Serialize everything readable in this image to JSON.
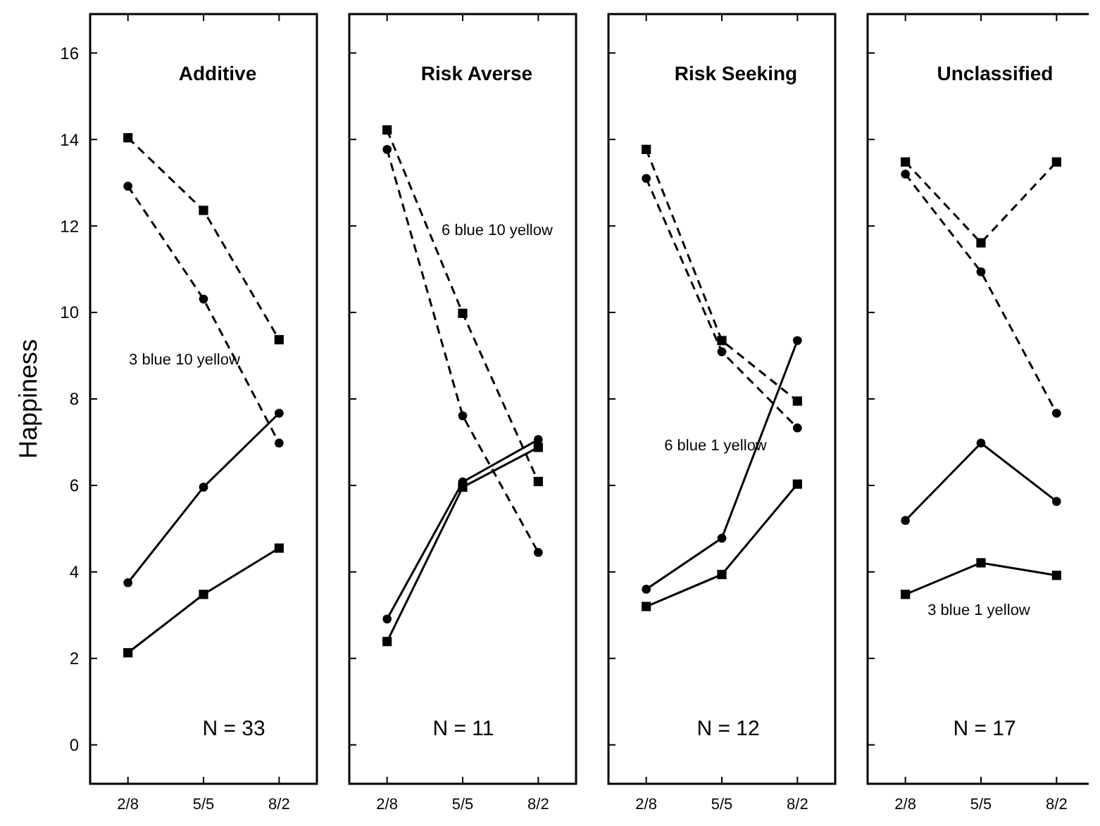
{
  "chart_data": [
    {
      "type": "line",
      "title": "Additive",
      "ylabel": "Happiness",
      "categories": [
        "2/8",
        "5/5",
        "8/2"
      ],
      "ylim": [
        -0.9,
        16.9
      ],
      "yticks": [
        0,
        2,
        4,
        6,
        8,
        10,
        12,
        14,
        16
      ],
      "series": [
        {
          "color": "#000000",
          "marker": "square",
          "line_style": "dashed",
          "values": [
            14.04,
            12.36,
            9.37
          ]
        },
        {
          "color": "#000000",
          "marker": "circle",
          "line_style": "dashed",
          "values": [
            12.92,
            10.31,
            6.98
          ]
        },
        {
          "color": "#000000",
          "marker": "circle",
          "line_style": "solid",
          "values": [
            3.75,
            5.96,
            7.67
          ]
        },
        {
          "color": "#000000",
          "marker": "square",
          "line_style": "solid",
          "values": [
            2.13,
            3.48,
            4.55
          ]
        }
      ],
      "annotations": [
        "3 blue 10 yellow",
        "N = 33"
      ]
    },
    {
      "type": "line",
      "title": "Risk Averse",
      "categories": [
        "2/8",
        "5/5",
        "8/2"
      ],
      "ylim": [
        -0.9,
        16.9
      ],
      "yticks": [
        0,
        2,
        4,
        6,
        8,
        10,
        12,
        14,
        16
      ],
      "tick_labels": "x",
      "series": [
        {
          "color": "#000000",
          "marker": "square",
          "line_style": "dashed",
          "values": [
            14.22,
            9.98,
            6.09
          ]
        },
        {
          "color": "#000000",
          "marker": "circle",
          "line_style": "dashed",
          "values": [
            13.77,
            7.61,
            4.45
          ]
        },
        {
          "color": "#000000",
          "marker": "circle",
          "line_style": "solid",
          "values": [
            2.91,
            6.08,
            7.06
          ]
        },
        {
          "color": "#000000",
          "marker": "square",
          "line_style": "solid",
          "values": [
            2.39,
            5.96,
            6.88
          ]
        }
      ],
      "annotations": [
        "6 blue 10 yellow",
        "N = 11"
      ]
    },
    {
      "type": "line",
      "title": "Risk Seeking",
      "categories": [
        "2/8",
        "5/5",
        "8/2"
      ],
      "ylim": [
        -0.9,
        16.9
      ],
      "yticks": [
        0,
        2,
        4,
        6,
        8,
        10,
        12,
        14,
        16
      ],
      "tick_labels": "x",
      "series": [
        {
          "color": "#000000",
          "marker": "square",
          "line_style": "dashed",
          "values": [
            13.77,
            9.35,
            7.95
          ]
        },
        {
          "color": "#000000",
          "marker": "circle",
          "line_style": "dashed",
          "values": [
            13.1,
            9.09,
            7.33
          ]
        },
        {
          "color": "#000000",
          "marker": "circle",
          "line_style": "solid",
          "values": [
            3.6,
            4.78,
            9.35
          ]
        },
        {
          "color": "#000000",
          "marker": "square",
          "line_style": "solid",
          "values": [
            3.2,
            3.94,
            6.03
          ]
        }
      ],
      "annotations": [
        "6 blue 1 yellow",
        "N = 12"
      ]
    },
    {
      "type": "line",
      "title": "Unclassified",
      "categories": [
        "2/8",
        "5/5",
        "8/2"
      ],
      "ylim": [
        -0.9,
        16.9
      ],
      "yticks": [
        0,
        2,
        4,
        6,
        8,
        10,
        12,
        14,
        16
      ],
      "tick_labels": "x",
      "series": [
        {
          "color": "#000000",
          "marker": "square",
          "line_style": "dashed",
          "values": [
            13.48,
            11.61,
            13.48
          ]
        },
        {
          "color": "#000000",
          "marker": "circle",
          "line_style": "dashed",
          "values": [
            13.2,
            10.94,
            7.67
          ]
        },
        {
          "color": "#000000",
          "marker": "circle",
          "line_style": "solid",
          "values": [
            5.19,
            6.98,
            5.63
          ]
        },
        {
          "color": "#000000",
          "marker": "square",
          "line_style": "solid",
          "values": [
            3.48,
            4.21,
            3.92
          ]
        }
      ],
      "annotations": [
        "3 blue 1 yellow",
        "N = 17"
      ]
    }
  ]
}
